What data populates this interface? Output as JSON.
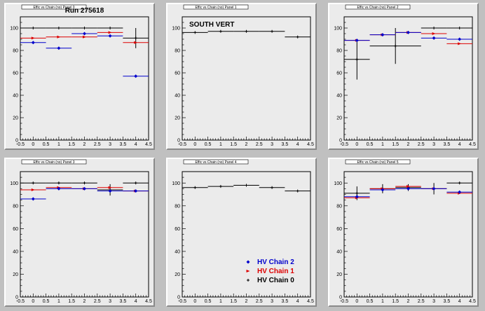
{
  "colors": {
    "chain2": "#0000cc",
    "chain1": "#dd0000",
    "chain0": "#000000",
    "pad_bg": "#ebebeb",
    "canvas_bg": "#c0c0c0"
  },
  "legend": {
    "items": [
      {
        "label": "HV Chain 2",
        "color": "#0000cc",
        "marker": "diamond"
      },
      {
        "label": "HV Chain 1",
        "color": "#dd0000",
        "marker": "arrow"
      },
      {
        "label": "HV Chain 0",
        "color": "#000000",
        "marker": "plus"
      }
    ]
  },
  "chart_data": [
    {
      "type": "scatter",
      "title_box": "Effic vs Chain (no) Panel 0",
      "title": "Run 275618",
      "xlim": [
        -0.5,
        4.5
      ],
      "ylim": [
        0,
        110
      ],
      "xticks": [
        "-0.5",
        "0",
        "0.5",
        "1",
        "1.5",
        "2",
        "2.5",
        "3",
        "3.5",
        "4",
        "4.5"
      ],
      "yticks": [
        "0",
        "20",
        "40",
        "60",
        "80",
        "100"
      ],
      "series": [
        {
          "key": "chain0",
          "points": [
            {
              "x": 0,
              "xerr": 0.5,
              "y": 100,
              "yerr": 0
            },
            {
              "x": 1,
              "xerr": 0.5,
              "y": 100,
              "yerr": 0
            },
            {
              "x": 2,
              "xerr": 0.5,
              "y": 100,
              "yerr": 0
            },
            {
              "x": 3,
              "xerr": 0.5,
              "y": 100,
              "yerr": 0
            },
            {
              "x": 4,
              "xerr": 0.5,
              "y": 91,
              "yerr": 9
            }
          ]
        },
        {
          "key": "chain1",
          "points": [
            {
              "x": 0,
              "xerr": 0.5,
              "y": 91,
              "yerr": 0
            },
            {
              "x": 1,
              "xerr": 0.5,
              "y": 92,
              "yerr": 0
            },
            {
              "x": 2,
              "xerr": 0.5,
              "y": 92,
              "yerr": 0
            },
            {
              "x": 3,
              "xerr": 0.5,
              "y": 96,
              "yerr": 0
            },
            {
              "x": 4,
              "xerr": 0.5,
              "y": 87,
              "yerr": 0
            }
          ]
        },
        {
          "key": "chain2",
          "points": [
            {
              "x": 0,
              "xerr": 0.5,
              "y": 87,
              "yerr": 0
            },
            {
              "x": 1,
              "xerr": 0.5,
              "y": 82,
              "yerr": 0
            },
            {
              "x": 2,
              "xerr": 0.5,
              "y": 95,
              "yerr": 0
            },
            {
              "x": 3,
              "xerr": 0.5,
              "y": 93,
              "yerr": 0
            },
            {
              "x": 4,
              "xerr": 0.5,
              "y": 57,
              "yerr": 0
            }
          ]
        }
      ]
    },
    {
      "type": "scatter",
      "title_box": "Effic vs Chain (no) Panel 1",
      "title": "SOUTH VERT",
      "xlim": [
        -0.5,
        4.5
      ],
      "ylim": [
        0,
        110
      ],
      "xticks": [
        "-0.5",
        "0",
        "0.5",
        "1",
        "1.5",
        "2",
        "2.5",
        "3",
        "3.5",
        "4",
        "4.5"
      ],
      "yticks": [
        "0",
        "20",
        "40",
        "60",
        "80",
        "100"
      ],
      "series": [
        {
          "key": "chain0",
          "points": [
            {
              "x": 0,
              "xerr": 0.5,
              "y": 96,
              "yerr": 0
            },
            {
              "x": 1,
              "xerr": 0.5,
              "y": 97,
              "yerr": 0
            },
            {
              "x": 2,
              "xerr": 0.5,
              "y": 97,
              "yerr": 0
            },
            {
              "x": 3,
              "xerr": 0.5,
              "y": 97,
              "yerr": 0
            },
            {
              "x": 4,
              "xerr": 0.5,
              "y": 92,
              "yerr": 0
            }
          ]
        }
      ]
    },
    {
      "type": "scatter",
      "title_box": "Effic vs Chain (no) Panel 2",
      "title": "",
      "xlim": [
        -0.5,
        4.5
      ],
      "ylim": [
        0,
        110
      ],
      "xticks": [
        "-0.5",
        "0",
        "0.5",
        "1",
        "1.5",
        "2",
        "2.5",
        "3",
        "3.5",
        "4",
        "4.5"
      ],
      "yticks": [
        "0",
        "20",
        "40",
        "60",
        "80",
        "100"
      ],
      "series": [
        {
          "key": "chain0",
          "points": [
            {
              "x": 0,
              "xerr": 0.5,
              "y": 72,
              "yerr": 18
            },
            {
              "x": 1.5,
              "xerr": 1.0,
              "y": 84,
              "yerr": 16
            },
            {
              "x": 3,
              "xerr": 0.5,
              "y": 100,
              "yerr": 0
            },
            {
              "x": 4,
              "xerr": 0.5,
              "y": 100,
              "yerr": 0
            }
          ]
        },
        {
          "key": "chain1",
          "points": [
            {
              "x": 0,
              "xerr": 0.5,
              "y": 89,
              "yerr": 0
            },
            {
              "x": 1,
              "xerr": 0.5,
              "y": 94,
              "yerr": 0
            },
            {
              "x": 2,
              "xerr": 0.5,
              "y": 96,
              "yerr": 0
            },
            {
              "x": 3,
              "xerr": 0.5,
              "y": 95,
              "yerr": 0
            },
            {
              "x": 4,
              "xerr": 0.5,
              "y": 86,
              "yerr": 0
            }
          ]
        },
        {
          "key": "chain2",
          "points": [
            {
              "x": 0,
              "xerr": 0.5,
              "y": 89,
              "yerr": 0
            },
            {
              "x": 1,
              "xerr": 0.5,
              "y": 94,
              "yerr": 0
            },
            {
              "x": 2,
              "xerr": 0.5,
              "y": 96,
              "yerr": 0
            },
            {
              "x": 3,
              "xerr": 0.5,
              "y": 91,
              "yerr": 0
            },
            {
              "x": 4,
              "xerr": 0.5,
              "y": 90,
              "yerr": 0
            }
          ]
        }
      ]
    },
    {
      "type": "scatter",
      "title_box": "Effic vs Chain (no) Panel 3",
      "title": "",
      "xlim": [
        -0.5,
        4.5
      ],
      "ylim": [
        0,
        110
      ],
      "xticks": [
        "-0.5",
        "0",
        "0.5",
        "1",
        "1.5",
        "2",
        "2.5",
        "3",
        "3.5",
        "4",
        "4.5"
      ],
      "yticks": [
        "0",
        "20",
        "40",
        "60",
        "80",
        "100"
      ],
      "series": [
        {
          "key": "chain0",
          "points": [
            {
              "x": 0,
              "xerr": 0.5,
              "y": 100,
              "yerr": 0
            },
            {
              "x": 1,
              "xerr": 0.5,
              "y": 100,
              "yerr": 0
            },
            {
              "x": 2,
              "xerr": 0.5,
              "y": 100,
              "yerr": 0
            },
            {
              "x": 3,
              "xerr": 0.5,
              "y": 94,
              "yerr": 5
            },
            {
              "x": 4,
              "xerr": 0.5,
              "y": 100,
              "yerr": 0
            }
          ]
        },
        {
          "key": "chain1",
          "points": [
            {
              "x": 0,
              "xerr": 0.5,
              "y": 94,
              "yerr": 0
            },
            {
              "x": 1,
              "xerr": 0.5,
              "y": 96,
              "yerr": 0
            },
            {
              "x": 2,
              "xerr": 0.5,
              "y": 95,
              "yerr": 0
            },
            {
              "x": 3,
              "xerr": 0.5,
              "y": 96,
              "yerr": 0
            },
            {
              "x": 4,
              "xerr": 0.5,
              "y": 93,
              "yerr": 0
            }
          ]
        },
        {
          "key": "chain2",
          "points": [
            {
              "x": 0,
              "xerr": 0.5,
              "y": 86,
              "yerr": 0
            },
            {
              "x": 1,
              "xerr": 0.5,
              "y": 95,
              "yerr": 0
            },
            {
              "x": 2,
              "xerr": 0.5,
              "y": 95,
              "yerr": 0
            },
            {
              "x": 3,
              "xerr": 0.5,
              "y": 93,
              "yerr": 0
            },
            {
              "x": 4,
              "xerr": 0.5,
              "y": 93,
              "yerr": 0
            }
          ]
        }
      ]
    },
    {
      "type": "scatter",
      "title_box": "Effic vs Chain (no) Panel 4",
      "title": "",
      "xlim": [
        -0.5,
        4.5
      ],
      "ylim": [
        0,
        110
      ],
      "xticks": [
        "-0.5",
        "0",
        "0.5",
        "1",
        "1.5",
        "2",
        "2.5",
        "3",
        "3.5",
        "4",
        "4.5"
      ],
      "yticks": [
        "0",
        "20",
        "40",
        "60",
        "80",
        "100"
      ],
      "legend": true,
      "series": [
        {
          "key": "chain0",
          "points": [
            {
              "x": 0,
              "xerr": 0.5,
              "y": 96,
              "yerr": 0
            },
            {
              "x": 1,
              "xerr": 0.5,
              "y": 97,
              "yerr": 0
            },
            {
              "x": 2,
              "xerr": 0.5,
              "y": 98,
              "yerr": 0
            },
            {
              "x": 3,
              "xerr": 0.5,
              "y": 96,
              "yerr": 0
            },
            {
              "x": 4,
              "xerr": 0.5,
              "y": 93,
              "yerr": 0
            }
          ]
        }
      ]
    },
    {
      "type": "scatter",
      "title_box": "Effic vs Chain (no) Panel 5",
      "title": "",
      "xlim": [
        -0.5,
        4.5
      ],
      "ylim": [
        0,
        110
      ],
      "xticks": [
        "-0.5",
        "0",
        "0.5",
        "1",
        "1.5",
        "2",
        "2.5",
        "3",
        "3.5",
        "4",
        "4.5"
      ],
      "yticks": [
        "0",
        "20",
        "40",
        "60",
        "80",
        "100"
      ],
      "series": [
        {
          "key": "chain0",
          "points": [
            {
              "x": 0,
              "xerr": 0.5,
              "y": 91,
              "yerr": 6
            },
            {
              "x": 1,
              "xerr": 0.5,
              "y": 95,
              "yerr": 4
            },
            {
              "x": 2,
              "xerr": 0.5,
              "y": 96,
              "yerr": 3
            },
            {
              "x": 3,
              "xerr": 0.5,
              "y": 95,
              "yerr": 5
            },
            {
              "x": 4,
              "xerr": 0.5,
              "y": 100,
              "yerr": 0
            }
          ]
        },
        {
          "key": "chain1",
          "points": [
            {
              "x": 0,
              "xerr": 0.5,
              "y": 87,
              "yerr": 0
            },
            {
              "x": 1,
              "xerr": 0.5,
              "y": 95,
              "yerr": 0
            },
            {
              "x": 2,
              "xerr": 0.5,
              "y": 97,
              "yerr": 0
            },
            {
              "x": 3,
              "xerr": 0.5,
              "y": 95,
              "yerr": 0
            },
            {
              "x": 4,
              "xerr": 0.5,
              "y": 91,
              "yerr": 0
            }
          ]
        },
        {
          "key": "chain2",
          "points": [
            {
              "x": 0,
              "xerr": 0.5,
              "y": 88,
              "yerr": 0
            },
            {
              "x": 1,
              "xerr": 0.5,
              "y": 94,
              "yerr": 0
            },
            {
              "x": 2,
              "xerr": 0.5,
              "y": 95,
              "yerr": 0
            },
            {
              "x": 3,
              "xerr": 0.5,
              "y": 95,
              "yerr": 0
            },
            {
              "x": 4,
              "xerr": 0.5,
              "y": 92,
              "yerr": 0
            }
          ]
        }
      ]
    }
  ]
}
